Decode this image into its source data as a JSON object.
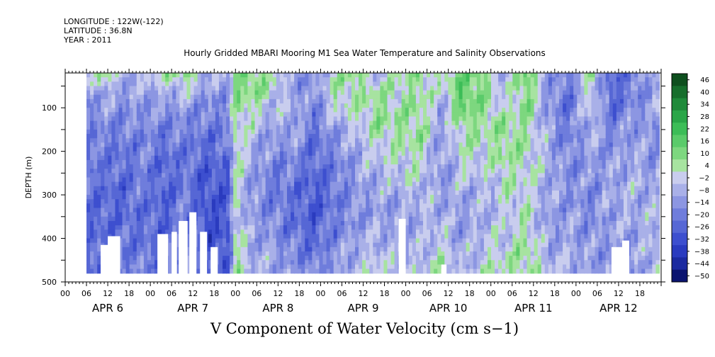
{
  "header": {
    "longitude": "LONGITUDE : 122W(-122)",
    "latitude": "LATITUDE : 36.8N",
    "year": "YEAR : 2011"
  },
  "title": "Hourly Gridded MBARI Mooring M1 Sea Water Temperature and Salinity Observations",
  "subtitle": "V Component of Water Velocity (cm s−1)",
  "chart_data": {
    "type": "heatmap",
    "title": "Hourly Gridded MBARI Mooring M1 Sea Water Temperature and Salinity Observations",
    "variable": "V Component of Water Velocity (cm s−1)",
    "ylabel": "DEPTH (m)",
    "ylim": [
      500,
      20
    ],
    "y_inverted": true,
    "y_ticks": [
      "100",
      "200",
      "300",
      "400",
      "500"
    ],
    "x_hour_ticks": [
      "00",
      "06",
      "12",
      "18",
      "00",
      "06",
      "12",
      "18",
      "00",
      "06",
      "12",
      "18",
      "00",
      "06",
      "12",
      "18",
      "00",
      "06",
      "12",
      "18",
      "00",
      "06",
      "12",
      "18",
      "00",
      "06",
      "12",
      "18"
    ],
    "x_day_labels": [
      "APR  6",
      "APR  7",
      "APR  8",
      "APR  9",
      "APR 10",
      "APR 11",
      "APR 12"
    ],
    "colorbar": {
      "labels": [
        "46",
        "40",
        "34",
        "28",
        "22",
        "16",
        "10",
        "4",
        "−2",
        "−8",
        "−14",
        "−20",
        "−26",
        "−32",
        "−38",
        "−44",
        "−50"
      ],
      "colors": [
        "#0e4f1e",
        "#166e2c",
        "#1f8a3a",
        "#2aa648",
        "#3cbd57",
        "#5acb6a",
        "#7dd77f",
        "#a7e3a0",
        "#c9cdee",
        "#a9b0e8",
        "#8c96e2",
        "#6f7ddc",
        "#5667d5",
        "#3d4fcf",
        "#2a3bbf",
        "#1b2aa0",
        "#0b1470"
      ]
    },
    "data_coverage": {
      "start": "APR 6 06h",
      "end": "APR 12 23h",
      "depth_min_m": 20,
      "depth_max_m": 480
    },
    "columns": [
      {
        "time_h": 6,
        "profile": [
          -10,
          -12,
          -14,
          -16,
          -18,
          -20,
          -20,
          -22,
          -24,
          -22
        ]
      },
      {
        "time_h": 10,
        "profile": [
          12,
          -6,
          -12,
          -16,
          -18,
          -20,
          -22,
          -22,
          -20,
          -18
        ]
      },
      {
        "time_h": 16,
        "profile": [
          -4,
          -10,
          -14,
          -18,
          -20,
          -22,
          -22,
          -20,
          -18,
          -16
        ]
      },
      {
        "time_h": 22,
        "profile": [
          -2,
          -8,
          -12,
          -14,
          -16,
          -16,
          -18,
          -20,
          -18,
          -14
        ]
      },
      {
        "time_h": 28,
        "profile": [
          6,
          -8,
          -14,
          -18,
          -22,
          -24,
          -24,
          -22,
          -20,
          -18
        ]
      },
      {
        "time_h": 34,
        "profile": [
          14,
          -4,
          -12,
          -16,
          -18,
          -18,
          -16,
          -14,
          -12,
          -10
        ]
      },
      {
        "time_h": 40,
        "profile": [
          -6,
          -12,
          -16,
          -20,
          -24,
          -26,
          -28,
          -28,
          -26,
          -24
        ]
      },
      {
        "time_h": 46,
        "profile": [
          -4,
          -10,
          -14,
          -18,
          -22,
          -24,
          -26,
          -28,
          -26,
          -22
        ]
      },
      {
        "time_h": 48,
        "profile": [
          10,
          10,
          8,
          6,
          6,
          4,
          4,
          6,
          8,
          10
        ]
      },
      {
        "time_h": 52,
        "profile": [
          16,
          10,
          4,
          -2,
          -6,
          -8,
          -10,
          -8,
          -6,
          -4
        ]
      },
      {
        "time_h": 58,
        "profile": [
          6,
          2,
          -6,
          -12,
          -14,
          -16,
          -16,
          -12,
          -8,
          -6
        ]
      },
      {
        "time_h": 64,
        "profile": [
          -12,
          -6,
          -4,
          -8,
          -14,
          -18,
          -20,
          -18,
          -14,
          -10
        ]
      },
      {
        "time_h": 70,
        "profile": [
          -10,
          -14,
          -18,
          -20,
          -22,
          -24,
          -26,
          -24,
          -20,
          -16
        ]
      },
      {
        "time_h": 76,
        "profile": [
          4,
          6,
          -4,
          -12,
          -16,
          -18,
          -18,
          -16,
          -12,
          -8
        ]
      },
      {
        "time_h": 82,
        "profile": [
          10,
          6,
          2,
          -4,
          -8,
          -10,
          -12,
          -10,
          -6,
          -4
        ]
      },
      {
        "time_h": 88,
        "profile": [
          -4,
          8,
          10,
          4,
          -2,
          -6,
          -8,
          -6,
          -2,
          2
        ]
      },
      {
        "time_h": 94,
        "profile": [
          6,
          4,
          8,
          6,
          2,
          -4,
          -8,
          -10,
          -6,
          -2
        ]
      },
      {
        "time_h": 100,
        "profile": [
          10,
          8,
          10,
          8,
          4,
          0,
          -4,
          -6,
          -4,
          -2
        ]
      },
      {
        "time_h": 106,
        "profile": [
          4,
          -4,
          -8,
          -10,
          -12,
          -10,
          -6,
          -2,
          2,
          6
        ]
      },
      {
        "time_h": 112,
        "profile": [
          14,
          20,
          12,
          6,
          2,
          -4,
          -8,
          -10,
          -8,
          -4
        ]
      },
      {
        "time_h": 118,
        "profile": [
          12,
          10,
          8,
          4,
          0,
          -4,
          -6,
          -4,
          0,
          4
        ]
      },
      {
        "time_h": 124,
        "profile": [
          -6,
          -4,
          6,
          10,
          8,
          4,
          0,
          -2,
          2,
          6
        ]
      },
      {
        "time_h": 130,
        "profile": [
          16,
          14,
          10,
          6,
          4,
          2,
          4,
          6,
          8,
          10
        ]
      },
      {
        "time_h": 136,
        "profile": [
          -8,
          -12,
          -10,
          -6,
          -4,
          -6,
          -8,
          -10,
          -6,
          -2
        ]
      },
      {
        "time_h": 142,
        "profile": [
          -16,
          -20,
          -18,
          -16,
          -14,
          -12,
          -10,
          -8,
          -6,
          -4
        ]
      },
      {
        "time_h": 148,
        "profile": [
          6,
          4,
          0,
          -6,
          -10,
          -12,
          -14,
          -12,
          -10,
          -8
        ]
      },
      {
        "time_h": 154,
        "profile": [
          -22,
          -24,
          -18,
          -14,
          -10,
          -8,
          -6,
          -8,
          -10,
          -12
        ]
      },
      {
        "time_h": 160,
        "profile": [
          -18,
          -14,
          -10,
          -8,
          -6,
          -4,
          -6,
          -8,
          -10,
          -12
        ]
      },
      {
        "time_h": 166,
        "profile": [
          -6,
          -8,
          -10,
          -12,
          -10,
          -8,
          -6,
          -4,
          -2,
          0
        ]
      }
    ]
  }
}
